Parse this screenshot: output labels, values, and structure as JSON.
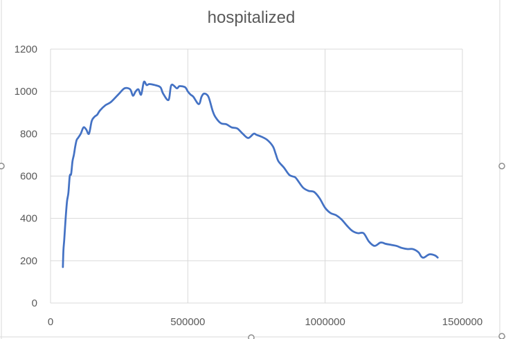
{
  "chart_data": {
    "type": "line",
    "title": "hospitalized",
    "xlabel": "",
    "ylabel": "",
    "xlim": [
      0,
      1500000
    ],
    "ylim": [
      0,
      1200
    ],
    "x_ticks": [
      "0",
      "500000",
      "1000000",
      "1500000"
    ],
    "y_ticks": [
      "0",
      "200",
      "400",
      "600",
      "800",
      "1000",
      "1200"
    ],
    "grid": true,
    "legend": "none",
    "line_color": "#4472C4",
    "series": [
      {
        "x": [
          45000,
          47000,
          50000,
          55000,
          60000,
          65000,
          70000,
          75000,
          80000,
          85000,
          90000,
          95000,
          100000,
          110000,
          120000,
          130000,
          140000,
          150000,
          160000,
          170000,
          180000,
          200000,
          220000,
          250000,
          270000,
          290000,
          300000,
          310000,
          320000,
          330000,
          340000,
          350000,
          360000,
          380000,
          400000,
          410000,
          430000,
          440000,
          460000,
          470000,
          490000,
          500000,
          510000,
          520000,
          540000,
          550000,
          560000,
          575000,
          590000,
          600000,
          620000,
          640000,
          660000,
          680000,
          700000,
          720000,
          740000,
          750000,
          770000,
          790000,
          810000,
          820000,
          830000,
          850000,
          870000,
          890000,
          900000,
          920000,
          940000,
          960000,
          980000,
          1000000,
          1020000,
          1040000,
          1060000,
          1080000,
          1100000,
          1120000,
          1140000,
          1160000,
          1180000,
          1200000,
          1210000,
          1220000,
          1240000,
          1260000,
          1280000,
          1300000,
          1320000,
          1340000,
          1350000,
          1360000,
          1380000,
          1400000,
          1410000
        ],
        "y": [
          170,
          250,
          300,
          400,
          480,
          520,
          600,
          610,
          670,
          700,
          740,
          770,
          780,
          800,
          830,
          820,
          800,
          860,
          880,
          890,
          910,
          935,
          950,
          990,
          1015,
          1010,
          980,
          1000,
          1010,
          985,
          1045,
          1030,
          1035,
          1030,
          1020,
          990,
          960,
          1030,
          1015,
          1025,
          1020,
          1000,
          985,
          975,
          940,
          975,
          990,
          975,
          910,
          880,
          850,
          845,
          830,
          825,
          800,
          780,
          800,
          795,
          785,
          770,
          740,
          705,
          670,
          640,
          605,
          595,
          580,
          545,
          530,
          525,
          495,
          450,
          425,
          415,
          395,
          365,
          340,
          330,
          330,
          290,
          270,
          285,
          285,
          280,
          275,
          270,
          260,
          255,
          255,
          240,
          220,
          215,
          230,
          225,
          215
        ]
      }
    ]
  }
}
